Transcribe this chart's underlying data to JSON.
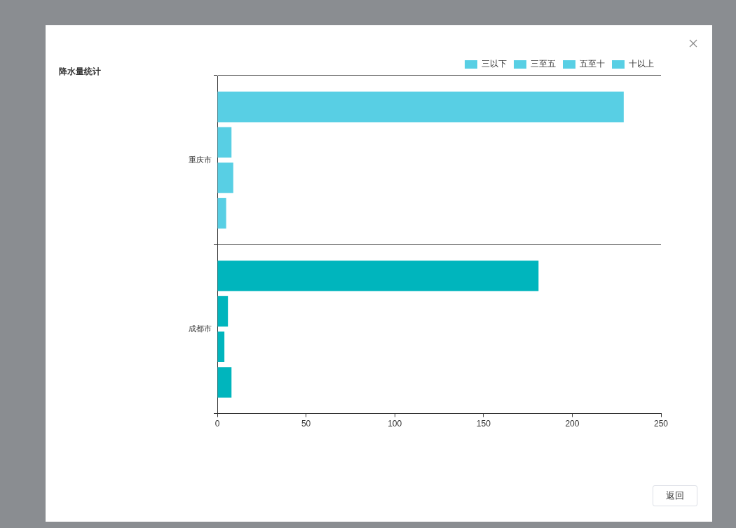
{
  "chart_data": {
    "type": "bar",
    "orientation": "horizontal",
    "title": "降水量统计",
    "categories": [
      "重庆市",
      "成都市"
    ],
    "series": [
      {
        "name": "三以下",
        "color": "#58cfe4",
        "colors": [
          "#58cfe4",
          "#00b5bd"
        ],
        "values": [
          229,
          181
        ]
      },
      {
        "name": "三至五",
        "color": "#58cfe4",
        "colors": [
          "#58cfe4",
          "#00b5bd"
        ],
        "values": [
          8,
          6
        ]
      },
      {
        "name": "五至十",
        "color": "#58cfe4",
        "colors": [
          "#58cfe4",
          "#00b5bd"
        ],
        "values": [
          9,
          4
        ]
      },
      {
        "name": "十以上",
        "color": "#58cfe4",
        "colors": [
          "#58cfe4",
          "#00b5bd"
        ],
        "values": [
          5,
          8
        ]
      }
    ],
    "xlim": [
      0,
      250
    ],
    "xticks": [
      0,
      50,
      100,
      150,
      200,
      250
    ],
    "grid": "y",
    "legend": "top right",
    "annotations": [
      "返回"
    ]
  }
}
